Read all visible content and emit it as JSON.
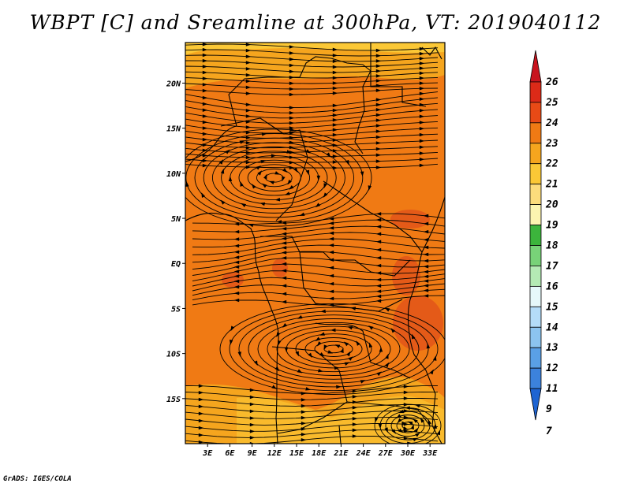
{
  "title": "WBPT [C] and Sreamline at 300hPa, VT: 2019040112",
  "credit": "GrADS: IGES/COLA",
  "map": {
    "lat_labels": [
      "20N",
      "15N",
      "10N",
      "5N",
      "EQ",
      "5S",
      "10S",
      "15S"
    ],
    "lon_labels": [
      "3E",
      "6E",
      "9E",
      "12E",
      "15E",
      "18E",
      "21E",
      "24E",
      "27E",
      "30E",
      "33E"
    ],
    "lat_values": [
      20,
      15,
      10,
      5,
      0,
      -5,
      -10,
      -15
    ],
    "lon_values": [
      3,
      6,
      9,
      12,
      15,
      18,
      21,
      24,
      27,
      30,
      33
    ],
    "lat_range": [
      -20,
      24.5
    ],
    "lon_range": [
      0,
      35
    ],
    "fill_colors": {
      "background": "#f07a14",
      "warm_band": "#f5a51e",
      "cool_band": "#fbc836",
      "pale": "#fcdc7c",
      "hot": "#e45a18"
    }
  },
  "colorbar": {
    "labels": [
      "26",
      "25",
      "24",
      "23",
      "22",
      "21",
      "20",
      "19",
      "18",
      "17",
      "16",
      "15",
      "14",
      "13",
      "12",
      "11",
      "9",
      "7"
    ],
    "colors": [
      "#c8141e",
      "#dc2a18",
      "#e84a16",
      "#f07a14",
      "#f5a51e",
      "#fbc836",
      "#fcdc7c",
      "#fcf4b0",
      "#3cb43c",
      "#78d278",
      "#b4eab4",
      "#e6f8fa",
      "#b4dcf8",
      "#8cc4f0",
      "#5aa0e6",
      "#3c82dc",
      "#1e64d2"
    ]
  }
}
